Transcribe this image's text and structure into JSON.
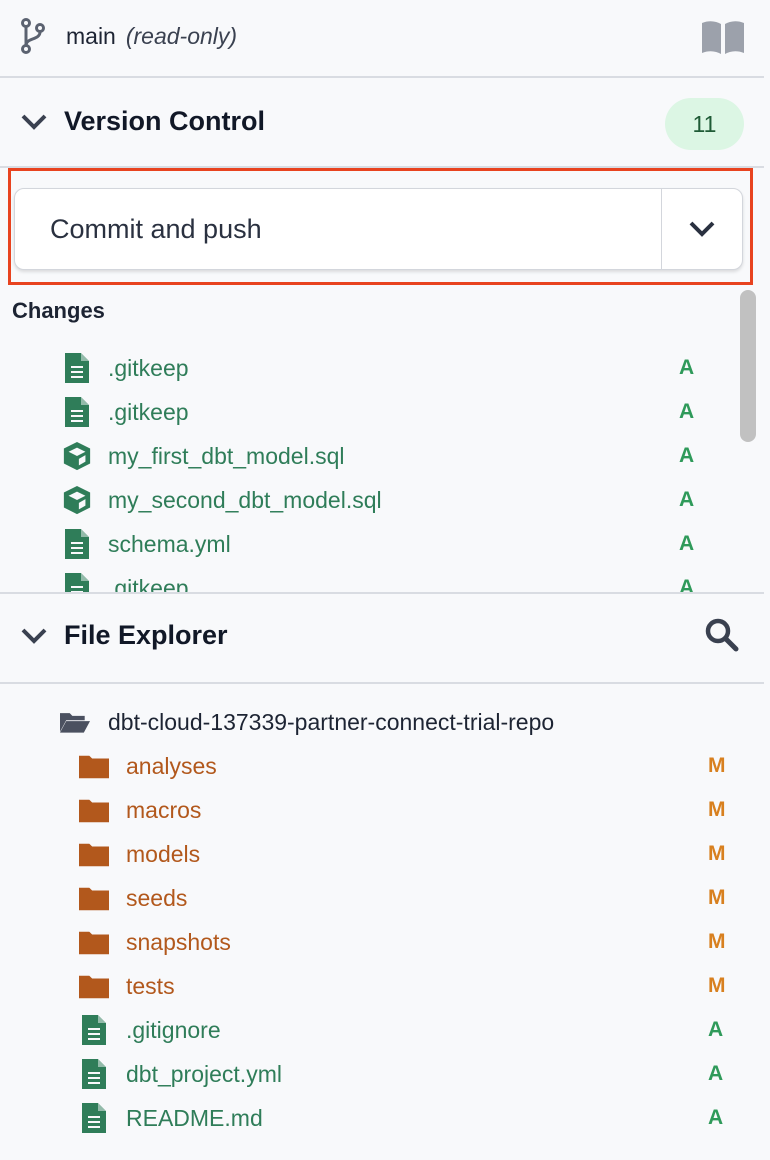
{
  "branch": {
    "name": "main",
    "mode": "(read-only)",
    "icon": "git-branch-icon",
    "docs_icon": "book-icon"
  },
  "version_control": {
    "title": "Version Control",
    "count": "11",
    "commit_button": "Commit and push",
    "changes_label": "Changes",
    "changes": [
      {
        "name": ".gitkeep",
        "status": "A",
        "icon": "file-icon"
      },
      {
        "name": ".gitkeep",
        "status": "A",
        "icon": "file-icon"
      },
      {
        "name": "my_first_dbt_model.sql",
        "status": "A",
        "icon": "model-cube-icon"
      },
      {
        "name": "my_second_dbt_model.sql",
        "status": "A",
        "icon": "model-cube-icon"
      },
      {
        "name": "schema.yml",
        "status": "A",
        "icon": "file-icon"
      },
      {
        "name": ".gitkeep",
        "status": "A",
        "icon": "file-icon"
      }
    ]
  },
  "file_explorer": {
    "title": "File Explorer",
    "root": "dbt-cloud-137339-partner-connect-trial-repo",
    "items": [
      {
        "name": "analyses",
        "status": "M",
        "type": "folder"
      },
      {
        "name": "macros",
        "status": "M",
        "type": "folder"
      },
      {
        "name": "models",
        "status": "M",
        "type": "folder"
      },
      {
        "name": "seeds",
        "status": "M",
        "type": "folder"
      },
      {
        "name": "snapshots",
        "status": "M",
        "type": "folder"
      },
      {
        "name": "tests",
        "status": "M",
        "type": "folder"
      },
      {
        "name": ".gitignore",
        "status": "A",
        "type": "file"
      },
      {
        "name": "dbt_project.yml",
        "status": "A",
        "type": "file"
      },
      {
        "name": "README.md",
        "status": "A",
        "type": "file"
      }
    ]
  },
  "colors": {
    "added": "#2f9a5a",
    "modified": "#d8801f",
    "highlight": "#e8431f",
    "badge_bg": "#dcf6e4"
  }
}
